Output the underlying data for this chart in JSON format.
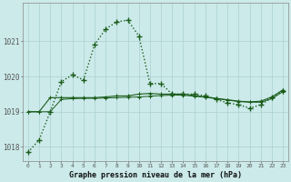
{
  "title": "Graphe pression niveau de la mer (hPa)",
  "xlabel_ticks": [
    "0",
    "1",
    "2",
    "3",
    "4",
    "5",
    "6",
    "7",
    "8",
    "9",
    "10",
    "11",
    "12",
    "13",
    "14",
    "15",
    "16",
    "17",
    "18",
    "19",
    "20",
    "21",
    "22",
    "23"
  ],
  "ylim": [
    1017.6,
    1022.1
  ],
  "yticks": [
    1018,
    1019,
    1020,
    1021
  ],
  "bg_color": "#cceaea",
  "grid_color": "#aad0d0",
  "line_color": "#1a5c1a",
  "series": {
    "main": [
      1017.85,
      1018.2,
      1019.0,
      1019.85,
      1020.05,
      1019.9,
      1020.9,
      1021.35,
      1021.55,
      1021.6,
      1021.15,
      1019.8,
      1019.8,
      1019.5,
      1019.5,
      1019.5,
      1019.45,
      1019.35,
      1019.25,
      1019.2,
      1019.1,
      1019.2,
      1019.4,
      1019.6
    ],
    "flat1": [
      1019.0,
      1019.0,
      1019.4,
      1019.4,
      1019.4,
      1019.4,
      1019.4,
      1019.42,
      1019.45,
      1019.45,
      1019.5,
      1019.52,
      1019.5,
      1019.5,
      1019.5,
      1019.46,
      1019.42,
      1019.38,
      1019.34,
      1019.3,
      1019.28,
      1019.3,
      1019.42,
      1019.62
    ],
    "flat2": [
      1019.0,
      1019.0,
      1019.0,
      1019.35,
      1019.37,
      1019.38,
      1019.38,
      1019.39,
      1019.4,
      1019.41,
      1019.42,
      1019.44,
      1019.46,
      1019.47,
      1019.47,
      1019.44,
      1019.41,
      1019.37,
      1019.33,
      1019.29,
      1019.27,
      1019.27,
      1019.37,
      1019.57
    ]
  }
}
